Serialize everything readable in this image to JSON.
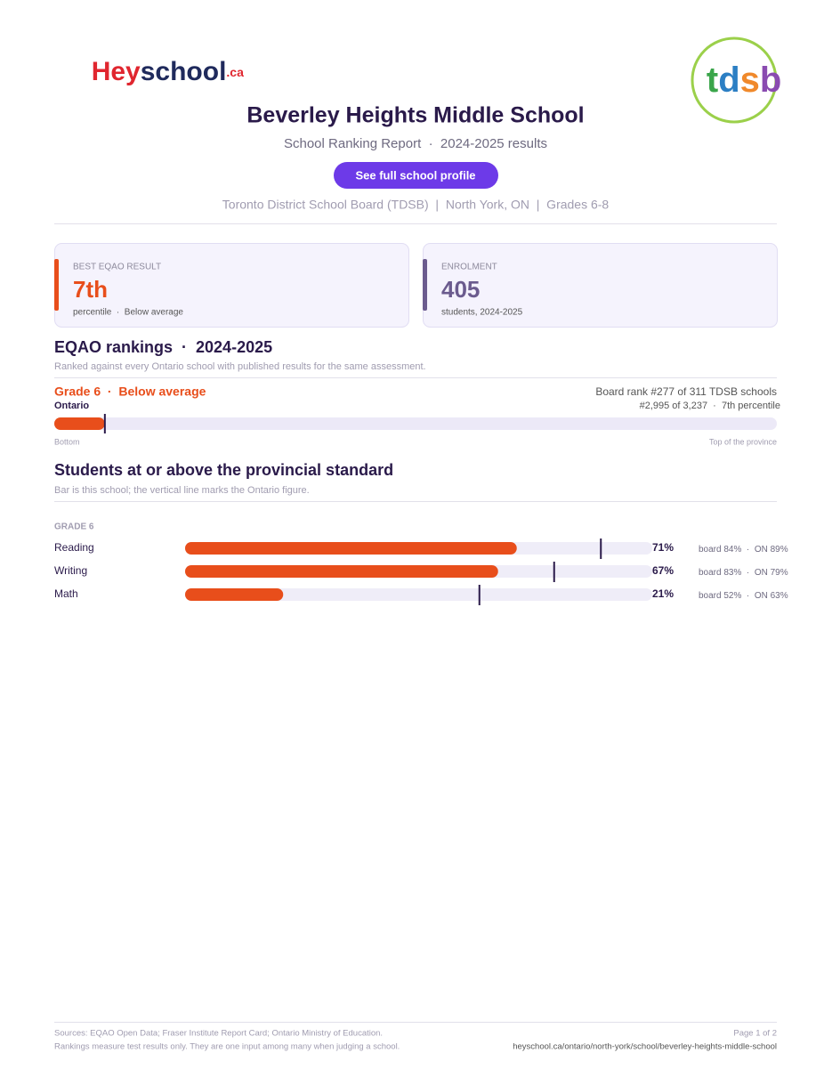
{
  "logo": {
    "parts": [
      "Hey",
      "school",
      ".ca"
    ]
  },
  "board_logo": {
    "letters": [
      "t",
      "d",
      "s",
      "b"
    ]
  },
  "header": {
    "title": "Beverley Heights Middle School",
    "subtitle": "School Ranking Report  ·  2024-2025 results",
    "button": "See full school profile",
    "meta": "Toronto District School Board (TDSB)  |  North York, ON  |  Grades 6-8"
  },
  "cards": [
    {
      "label": "BEST EQAO RESULT",
      "value": "7th",
      "note": "percentile  ·  Below average"
    },
    {
      "label": "ENROLMENT",
      "value": "405",
      "note": "students, 2024-2025"
    }
  ],
  "rankings": {
    "title": "EQAO rankings  ·  2024-2025",
    "subtitle": "Ranked against every Ontario school with published results for the same assessment.",
    "grade": "Grade 6  ·  Below average",
    "scope": "Ontario",
    "board_rank": "Board rank #277 of 311 TDSB schools",
    "province_rank": "#2,995 of 3,237  ·  7th percentile",
    "percentile": 7,
    "xlim": [
      0,
      100
    ],
    "left_label": "Bottom",
    "right_label": "Top of the province"
  },
  "standard": {
    "title": "Students at or above the provincial standard",
    "subtitle": "Bar is this school; the vertical line marks the Ontario figure.",
    "group": "GRADE 6",
    "xlim": [
      0,
      100
    ],
    "subjects": [
      {
        "name": "Reading",
        "value": 71,
        "value_label": "71%",
        "board": "board 84%",
        "ontario": 89,
        "ontario_label": "ON 89%"
      },
      {
        "name": "Writing",
        "value": 67,
        "value_label": "67%",
        "board": "board 83%",
        "ontario": 79,
        "ontario_label": "ON 79%"
      },
      {
        "name": "Math",
        "value": 21,
        "value_label": "21%",
        "board": "board 52%",
        "ontario": 63,
        "ontario_label": "ON 63%"
      }
    ]
  },
  "footer": {
    "sources": "Sources: EQAO Open Data; Fraser Institute Report Card; Ontario Ministry of Education.",
    "note": "Rankings measure test results only. They are one input among many when judging a school.",
    "page": "Page 1 of 2",
    "url": "heyschool.ca/ontario/north-york/school/beverley-heights-middle-school"
  }
}
